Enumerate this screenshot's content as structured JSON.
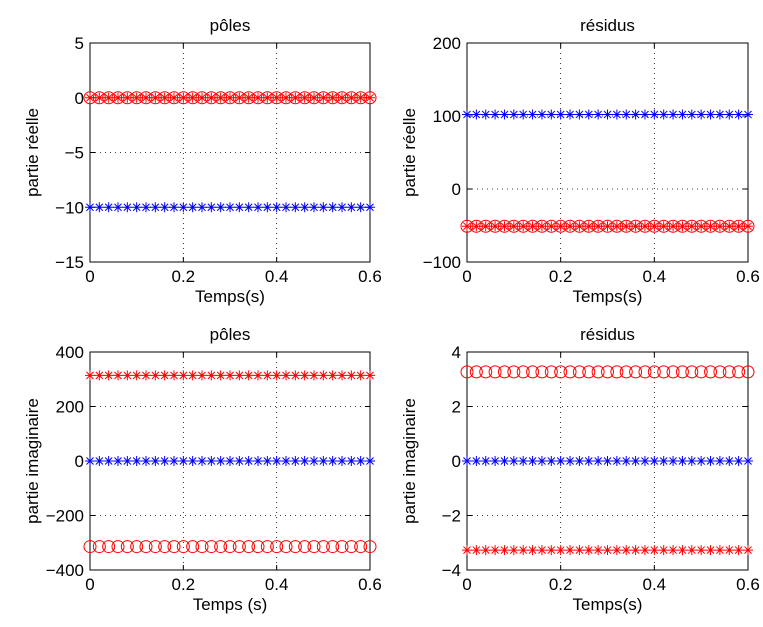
{
  "chart_data": [
    {
      "type": "scatter",
      "title": "pôles",
      "xlabel": "Temps(s)",
      "ylabel": "partie réelle",
      "xlim": [
        0,
        0.6
      ],
      "ylim": [
        -15,
        5
      ],
      "xticks": [
        0,
        0.2,
        0.4,
        0.6
      ],
      "xtick_labels": [
        "0",
        "0.2",
        "0.4",
        "0.6"
      ],
      "yticks": [
        -15,
        -10,
        -5,
        0,
        5
      ],
      "ytick_labels": [
        "−15",
        "−10",
        "−5",
        "0",
        "5"
      ],
      "grid": true,
      "x": [
        0,
        0.02,
        0.04,
        0.06,
        0.08,
        0.1,
        0.12,
        0.14,
        0.16,
        0.18,
        0.2,
        0.22,
        0.24,
        0.26,
        0.28,
        0.3,
        0.32,
        0.34,
        0.36,
        0.38,
        0.4,
        0.42,
        0.44,
        0.46,
        0.48,
        0.5,
        0.52,
        0.54,
        0.56,
        0.58,
        0.6
      ],
      "series": [
        {
          "marker": "star",
          "color": "#ff0000",
          "y": 0
        },
        {
          "marker": "circle",
          "color": "#ff0000",
          "y": 0
        },
        {
          "marker": "star",
          "color": "#0000ff",
          "y": -10
        }
      ]
    },
    {
      "type": "scatter",
      "title": "résidus",
      "xlabel": "Temps(s)",
      "ylabel": "partie réelle",
      "xlim": [
        0,
        0.6
      ],
      "ylim": [
        -100,
        200
      ],
      "xticks": [
        0,
        0.2,
        0.4,
        0.6
      ],
      "xtick_labels": [
        "0",
        "0.2",
        "0.4",
        "0.6"
      ],
      "yticks": [
        -100,
        0,
        100,
        200
      ],
      "ytick_labels": [
        "−100",
        "0",
        "100",
        "200"
      ],
      "grid": true,
      "x": [
        0,
        0.02,
        0.04,
        0.06,
        0.08,
        0.1,
        0.12,
        0.14,
        0.16,
        0.18,
        0.2,
        0.22,
        0.24,
        0.26,
        0.28,
        0.3,
        0.32,
        0.34,
        0.36,
        0.38,
        0.4,
        0.42,
        0.44,
        0.46,
        0.48,
        0.5,
        0.52,
        0.54,
        0.56,
        0.58,
        0.6
      ],
      "series": [
        {
          "marker": "star",
          "color": "#0000ff",
          "y": 102
        },
        {
          "marker": "star",
          "color": "#ff0000",
          "y": -51
        },
        {
          "marker": "circle",
          "color": "#ff0000",
          "y": -51
        }
      ]
    },
    {
      "type": "scatter",
      "title": "pôles",
      "xlabel": "Temps (s)",
      "ylabel": "partie imaginaire",
      "xlim": [
        0,
        0.6
      ],
      "ylim": [
        -400,
        400
      ],
      "xticks": [
        0,
        0.2,
        0.4,
        0.6
      ],
      "xtick_labels": [
        "0",
        "0.2",
        "0.4",
        "0.6"
      ],
      "yticks": [
        -400,
        -200,
        0,
        200,
        400
      ],
      "ytick_labels": [
        "−400",
        "−200",
        "0",
        "200",
        "400"
      ],
      "grid": true,
      "x": [
        0,
        0.02,
        0.04,
        0.06,
        0.08,
        0.1,
        0.12,
        0.14,
        0.16,
        0.18,
        0.2,
        0.22,
        0.24,
        0.26,
        0.28,
        0.3,
        0.32,
        0.34,
        0.36,
        0.38,
        0.4,
        0.42,
        0.44,
        0.46,
        0.48,
        0.5,
        0.52,
        0.54,
        0.56,
        0.58,
        0.6
      ],
      "series": [
        {
          "marker": "star",
          "color": "#ff0000",
          "y": 314
        },
        {
          "marker": "star",
          "color": "#0000ff",
          "y": 0
        },
        {
          "marker": "circle",
          "color": "#ff0000",
          "y": -314
        }
      ]
    },
    {
      "type": "scatter",
      "title": "résidus",
      "xlabel": "Temps(s)",
      "ylabel": "partie imaginaire",
      "xlim": [
        0,
        0.6
      ],
      "ylim": [
        -4,
        4
      ],
      "xticks": [
        0,
        0.2,
        0.4,
        0.6
      ],
      "xtick_labels": [
        "0",
        "0.2",
        "0.4",
        "0.6"
      ],
      "yticks": [
        -4,
        -2,
        0,
        2,
        4
      ],
      "ytick_labels": [
        "−4",
        "−2",
        "0",
        "2",
        "4"
      ],
      "grid": true,
      "x": [
        0,
        0.02,
        0.04,
        0.06,
        0.08,
        0.1,
        0.12,
        0.14,
        0.16,
        0.18,
        0.2,
        0.22,
        0.24,
        0.26,
        0.28,
        0.3,
        0.32,
        0.34,
        0.36,
        0.38,
        0.4,
        0.42,
        0.44,
        0.46,
        0.48,
        0.5,
        0.52,
        0.54,
        0.56,
        0.58,
        0.6
      ],
      "series": [
        {
          "marker": "circle",
          "color": "#ff0000",
          "y": 3.27
        },
        {
          "marker": "star",
          "color": "#0000ff",
          "y": 0
        },
        {
          "marker": "star",
          "color": "#ff0000",
          "y": -3.27
        }
      ]
    }
  ]
}
